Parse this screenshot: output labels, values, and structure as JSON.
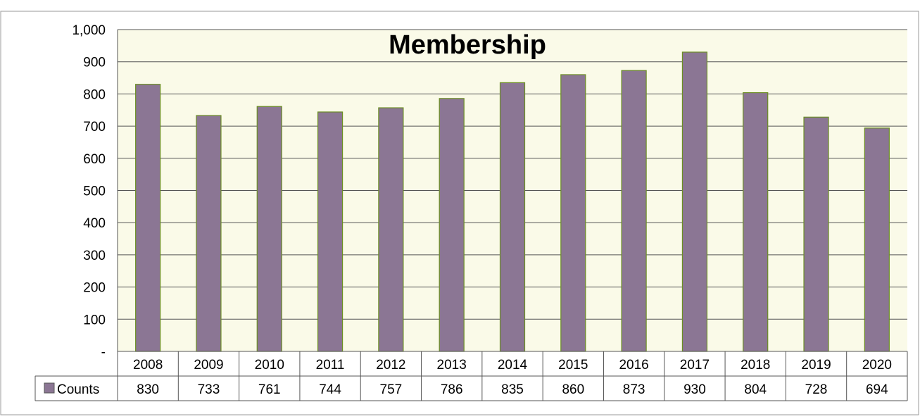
{
  "chart_data": {
    "type": "bar",
    "title": "Membership",
    "categories": [
      "2008",
      "2009",
      "2010",
      "2011",
      "2012",
      "2013",
      "2014",
      "2015",
      "2016",
      "2017",
      "2018",
      "2019",
      "2020"
    ],
    "series": [
      {
        "name": "Counts",
        "values": [
          830,
          733,
          761,
          744,
          757,
          786,
          835,
          860,
          873,
          930,
          804,
          728,
          694
        ]
      }
    ],
    "value_labels": [
      "830",
      "733",
      "761",
      "744",
      "757",
      "786",
      "835",
      "860",
      "873",
      "930",
      "804",
      "728",
      "694"
    ],
    "ylim": [
      0,
      1000
    ],
    "yticks": [
      0,
      100,
      200,
      300,
      400,
      500,
      600,
      700,
      800,
      900,
      1000
    ],
    "ytick_labels": [
      "-",
      "100",
      "200",
      "300",
      "400",
      "500",
      "600",
      "700",
      "800",
      "900",
      "1,000"
    ],
    "grid": true,
    "data_table": true,
    "colors": {
      "bar_fill": "#8B7694",
      "bar_stroke": "#6B8E23",
      "plot_background": "#FAFAE8",
      "gridline": "#555555",
      "legend_key_fill": "#8B7694"
    }
  }
}
